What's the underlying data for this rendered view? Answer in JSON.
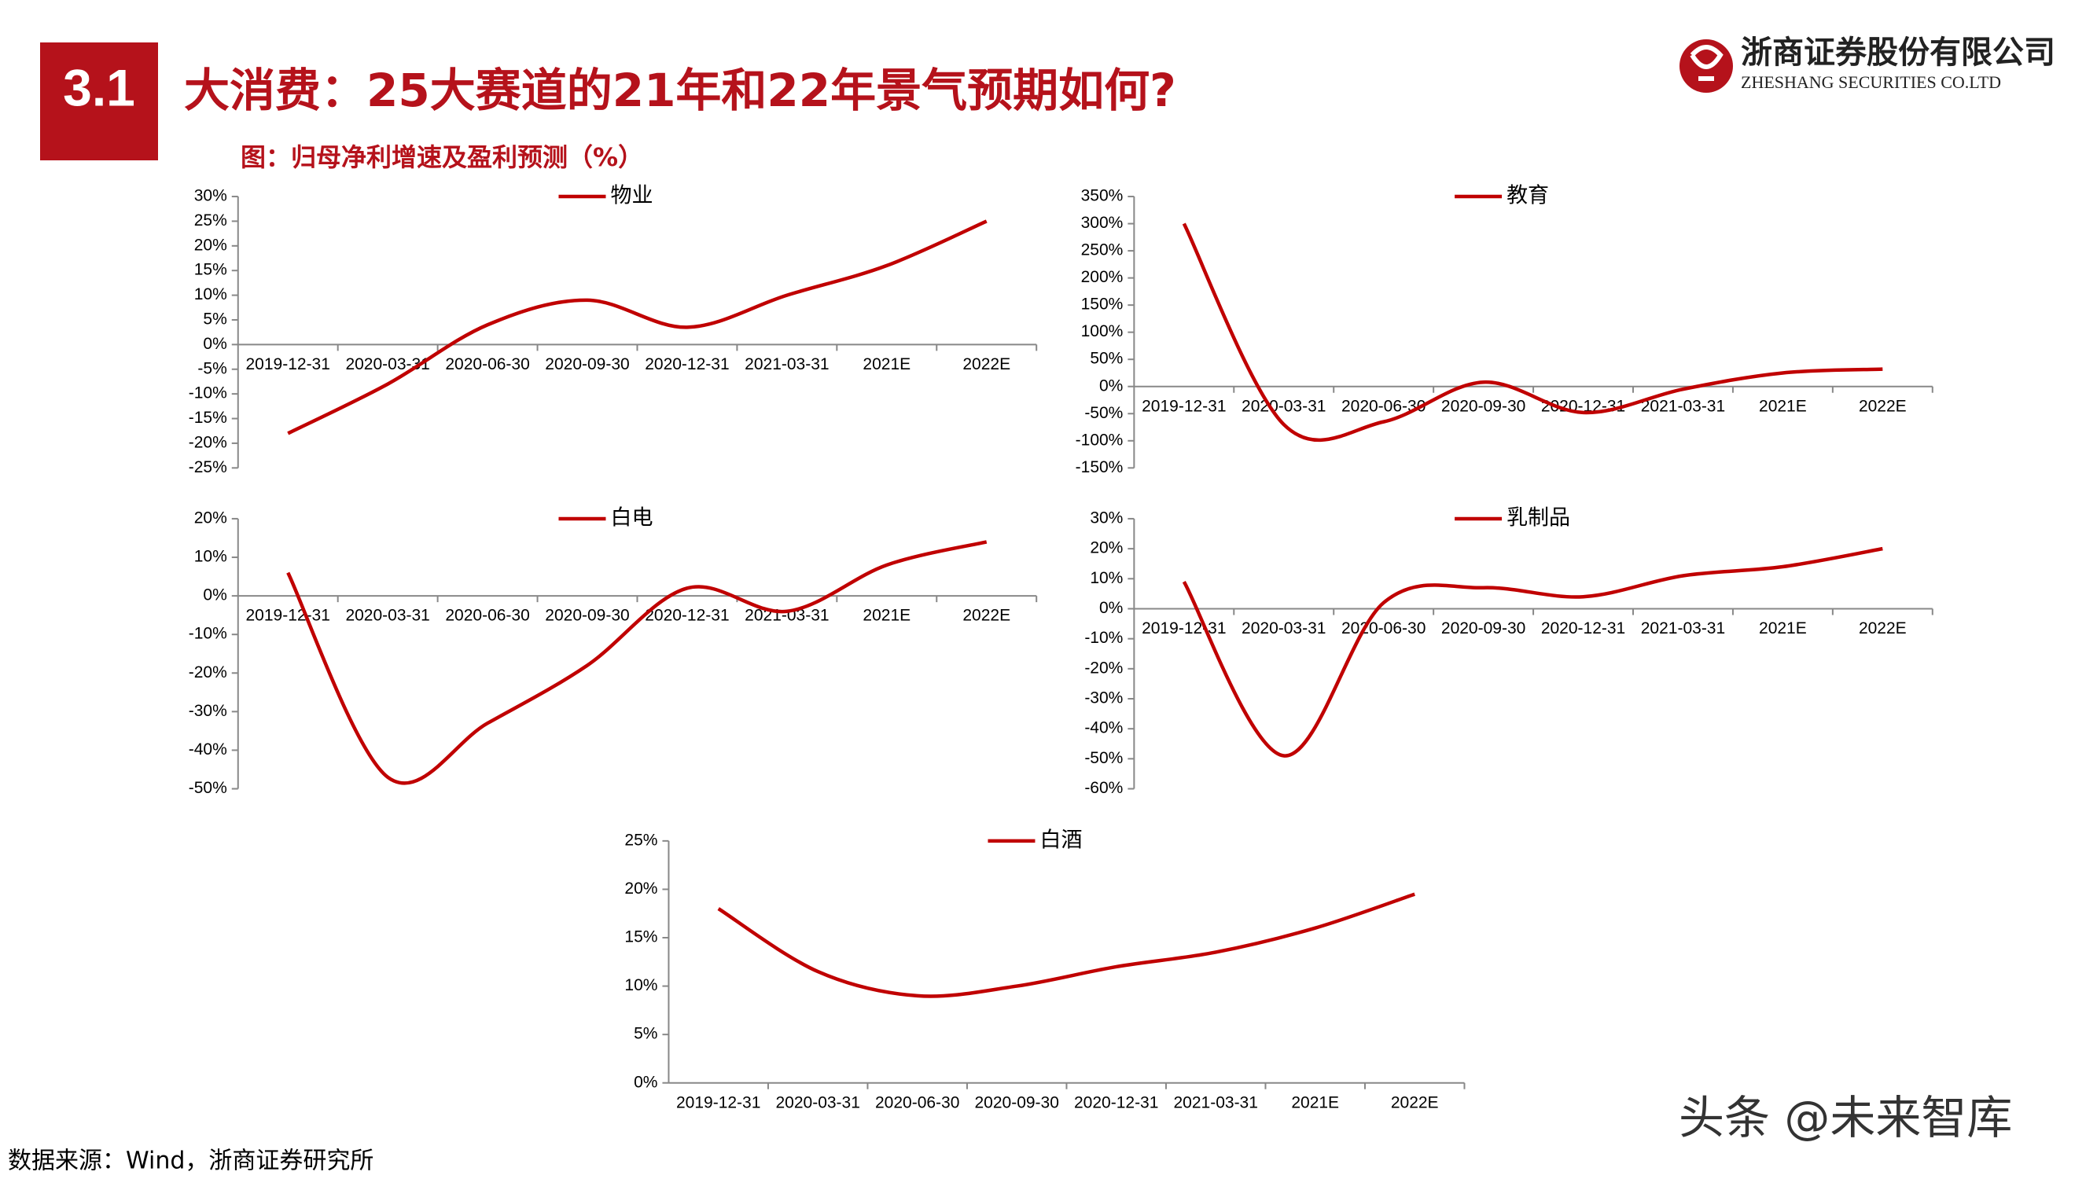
{
  "header": {
    "section": "3.1",
    "title": "大消费：25大赛道的21年和22年景气预期如何?",
    "subtitle": "图：归母净利增速及盈利预测（%）"
  },
  "logo": {
    "name": "浙商证券股份有限公司",
    "english": "ZHESHANG SECURITIES CO.LTD"
  },
  "source": "数据来源：Wind，浙商证券研究所",
  "watermark": "头条 @未来智库",
  "chart_data": [
    {
      "type": "line",
      "categories": [
        "2019-12-31",
        "2020-03-31",
        "2020-06-30",
        "2020-09-30",
        "2020-12-31",
        "2021-03-31",
        "2021E",
        "2022E"
      ],
      "series": [
        {
          "name": "物业",
          "color": "#c00000",
          "values": [
            -18,
            -8,
            4,
            9,
            3.5,
            10,
            16,
            25
          ]
        }
      ],
      "ylim": [
        -25,
        30
      ],
      "yticks": [
        {
          "value": -25,
          "label": "-25%"
        },
        {
          "value": -20,
          "label": "-20%"
        },
        {
          "value": -15,
          "label": "-15%"
        },
        {
          "value": -10,
          "label": "-10%"
        },
        {
          "value": -5,
          "label": "-5%"
        },
        {
          "value": 0,
          "label": "0%"
        },
        {
          "value": 5,
          "label": "5%"
        },
        {
          "value": 10,
          "label": "10%"
        },
        {
          "value": 15,
          "label": "15%"
        },
        {
          "value": 20,
          "label": "20%"
        },
        {
          "value": 25,
          "label": "25%"
        },
        {
          "value": 30,
          "label": "30%"
        }
      ]
    },
    {
      "type": "line",
      "categories": [
        "2019-12-31",
        "2020-03-31",
        "2020-06-30",
        "2020-09-30",
        "2020-12-31",
        "2021-03-31",
        "2021E",
        "2022E"
      ],
      "series": [
        {
          "name": "教育",
          "color": "#c00000",
          "values": [
            300,
            -70,
            -65,
            8,
            -48,
            -5,
            25,
            32
          ]
        }
      ],
      "ylim": [
        -150,
        350
      ],
      "yticks": [
        {
          "value": -150,
          "label": "-150%"
        },
        {
          "value": -100,
          "label": "-100%"
        },
        {
          "value": -50,
          "label": "-50%"
        },
        {
          "value": 0,
          "label": "0%"
        },
        {
          "value": 50,
          "label": "50%"
        },
        {
          "value": 100,
          "label": "100%"
        },
        {
          "value": 150,
          "label": "150%"
        },
        {
          "value": 200,
          "label": "200%"
        },
        {
          "value": 250,
          "label": "250%"
        },
        {
          "value": 300,
          "label": "300%"
        },
        {
          "value": 350,
          "label": "350%"
        }
      ]
    },
    {
      "type": "line",
      "categories": [
        "2019-12-31",
        "2020-03-31",
        "2020-06-30",
        "2020-09-30",
        "2020-12-31",
        "2021-03-31",
        "2021E",
        "2022E"
      ],
      "series": [
        {
          "name": "白电",
          "color": "#c00000",
          "values": [
            6,
            -47,
            -33,
            -18,
            2,
            -4,
            8,
            14
          ]
        }
      ],
      "ylim": [
        -50,
        20
      ],
      "yticks": [
        {
          "value": -50,
          "label": "-50%"
        },
        {
          "value": -40,
          "label": "-40%"
        },
        {
          "value": -30,
          "label": "-30%"
        },
        {
          "value": -20,
          "label": "-20%"
        },
        {
          "value": -10,
          "label": "-10%"
        },
        {
          "value": 0,
          "label": "0%"
        },
        {
          "value": 10,
          "label": "10%"
        },
        {
          "value": 20,
          "label": "20%"
        }
      ]
    },
    {
      "type": "line",
      "categories": [
        "2019-12-31",
        "2020-03-31",
        "2020-06-30",
        "2020-09-30",
        "2020-12-31",
        "2021-03-31",
        "2021E",
        "2022E"
      ],
      "series": [
        {
          "name": "乳制品",
          "color": "#c00000",
          "values": [
            9,
            -49,
            2,
            7,
            4,
            11,
            14,
            20
          ]
        }
      ],
      "ylim": [
        -60,
        30
      ],
      "yticks": [
        {
          "value": -60,
          "label": "-60%"
        },
        {
          "value": -50,
          "label": "-50%"
        },
        {
          "value": -40,
          "label": "-40%"
        },
        {
          "value": -30,
          "label": "-30%"
        },
        {
          "value": -20,
          "label": "-20%"
        },
        {
          "value": -10,
          "label": "-10%"
        },
        {
          "value": 0,
          "label": "0%"
        },
        {
          "value": 10,
          "label": "10%"
        },
        {
          "value": 20,
          "label": "20%"
        },
        {
          "value": 30,
          "label": "30%"
        }
      ]
    },
    {
      "type": "line",
      "categories": [
        "2019-12-31",
        "2020-03-31",
        "2020-06-30",
        "2020-09-30",
        "2020-12-31",
        "2021-03-31",
        "2021E",
        "2022E"
      ],
      "series": [
        {
          "name": "白酒",
          "color": "#c00000",
          "values": [
            18,
            11.5,
            9,
            10,
            12,
            13.5,
            16,
            19.5
          ]
        }
      ],
      "ylim": [
        0,
        25
      ],
      "yticks": [
        {
          "value": 0,
          "label": "0%"
        },
        {
          "value": 5,
          "label": "5%"
        },
        {
          "value": 10,
          "label": "10%"
        },
        {
          "value": 15,
          "label": "15%"
        },
        {
          "value": 20,
          "label": "20%"
        },
        {
          "value": 25,
          "label": "25%"
        }
      ]
    }
  ]
}
